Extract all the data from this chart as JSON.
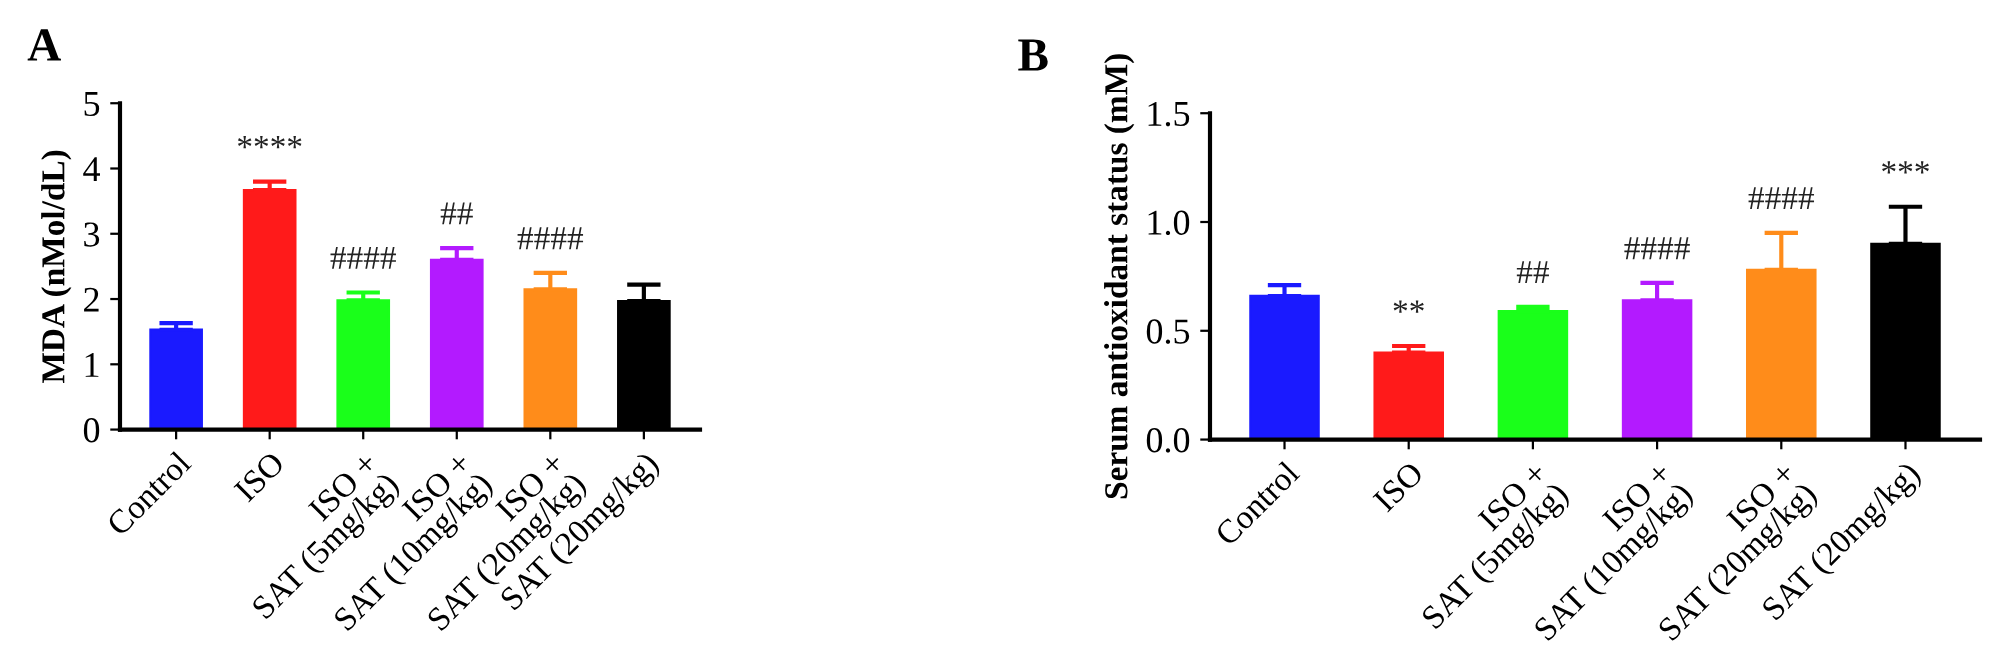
{
  "chart_data": [
    {
      "type": "bar",
      "title": "A",
      "ylabel": "MDA (nMol/dL)",
      "categories": [
        "Control",
        "ISO",
        "ISO +\nSAT (5mg/kg)",
        "ISO +\nSAT (10mg/kg)",
        "ISO +\nSAT (20mg/kg)",
        "SAT (20mg/kg)"
      ],
      "values": [
        1.53,
        3.67,
        1.98,
        2.6,
        2.15,
        1.97
      ],
      "errors": [
        [
          1.53,
          1.63
        ],
        [
          3.67,
          3.8
        ],
        [
          1.98,
          2.1
        ],
        [
          2.6,
          2.78
        ],
        [
          2.15,
          2.4
        ],
        [
          1.97,
          2.22
        ]
      ],
      "colors": [
        "#1a1aff",
        "#ff1a1a",
        "#1aff1a",
        "#b31aff",
        "#ff8c1a",
        "#000000"
      ],
      "ylim": [
        0,
        5
      ],
      "yticks": [
        0,
        1,
        2,
        3,
        4,
        5
      ],
      "grid": false,
      "legend": false,
      "annotations": [
        {
          "text": "****",
          "x": "ISO",
          "y": 3.8
        },
        {
          "text": "####",
          "x": "ISO +\nSAT (5mg/kg)",
          "y": 2.1
        },
        {
          "text": "##",
          "x": "ISO +\nSAT (10mg/kg)",
          "y": 2.78
        },
        {
          "text": "####",
          "x": "ISO +\nSAT (20mg/kg)",
          "y": 2.4
        }
      ]
    },
    {
      "type": "bar",
      "title": "B",
      "ylabel": "Serum antioxidant status (mM)",
      "categories": [
        "Control",
        "ISO",
        "ISO +\nSAT (5mg/kg)",
        "ISO +\nSAT (10mg/kg)",
        "ISO +\nSAT (20mg/kg)",
        "SAT (20mg/kg)"
      ],
      "values": [
        0.66,
        0.4,
        0.59,
        0.64,
        0.78,
        0.9
      ],
      "errors": [
        [
          0.66,
          0.71
        ],
        [
          0.4,
          0.43
        ],
        [
          0.59,
          0.61
        ],
        [
          0.64,
          0.72
        ],
        [
          0.78,
          0.95
        ],
        [
          0.9,
          1.07
        ]
      ],
      "colors": [
        "#1a1aff",
        "#ff1a1a",
        "#1aff1a",
        "#b31aff",
        "#ff8c1a",
        "#000000"
      ],
      "ylim": [
        0,
        1.5
      ],
      "yticks": [
        {
          "value": 0,
          "label": "0.0"
        },
        {
          "value": 0.5,
          "label": "0.5"
        },
        {
          "value": 1,
          "label": "1.0"
        },
        {
          "value": 1.5,
          "label": "1.5"
        }
      ],
      "grid": false,
      "legend": false,
      "annotations": [
        {
          "text": "**",
          "x": "ISO",
          "y": 0.43
        },
        {
          "text": "##",
          "x": "ISO +\nSAT (5mg/kg)",
          "y": 0.61
        },
        {
          "text": "####",
          "x": "ISO +\nSAT (10mg/kg)",
          "y": 0.72
        },
        {
          "text": "####",
          "x": "ISO +\nSAT (20mg/kg)",
          "y": 0.95
        },
        {
          "text": "***",
          "x": "SAT (20mg/kg)",
          "y": 1.07
        }
      ]
    }
  ]
}
